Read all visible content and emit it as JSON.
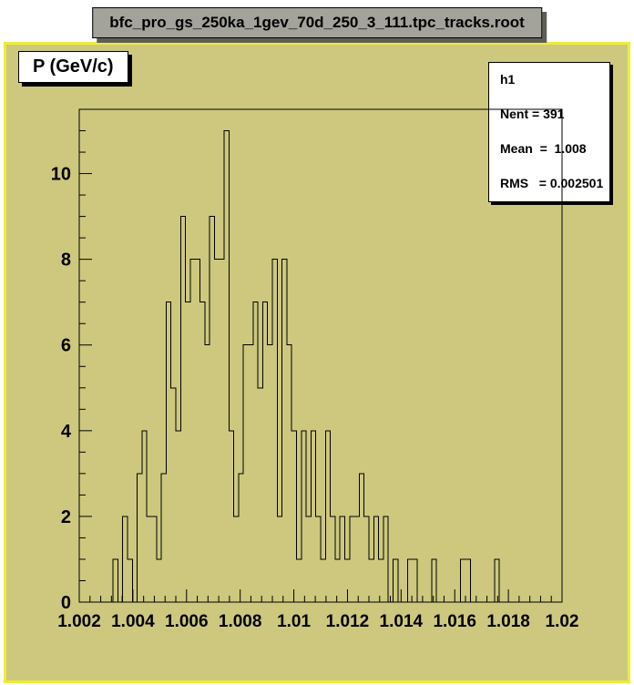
{
  "window": {
    "title": "bfc_pro_gs_250ka_1gev_70d_250_3_111.tpc_tracks.root"
  },
  "histogram_title": "P (GeV/c)",
  "stats_box": {
    "name": "h1",
    "entries_label": "Nent = 391",
    "mean_label": "Mean  =  1.008",
    "rms_label": "RMS   = 0.002501"
  },
  "colors": {
    "canvas_background": "#cdc87e",
    "canvas_border": "#eeec3a",
    "frame_line": "#000000",
    "histogram_line": "#000000",
    "stats_background": "#ffffff",
    "title_bar_background": "#a3a39b",
    "page_background": "#ffffff"
  },
  "chart_data": {
    "type": "bar",
    "subtype": "histogram-step-outline",
    "title": "P (GeV/c)",
    "xlabel": "",
    "ylabel": "",
    "grid": false,
    "legend": null,
    "x_start": 1.002,
    "x_end": 1.02,
    "n_bins": 100,
    "bin_width": 0.00018,
    "ylim": [
      0,
      11.5
    ],
    "x_major_ticks": [
      {
        "v": 1.002,
        "label": "1.002"
      },
      {
        "v": 1.004,
        "label": "1.004"
      },
      {
        "v": 1.006,
        "label": "1.006"
      },
      {
        "v": 1.008,
        "label": "1.008"
      },
      {
        "v": 1.01,
        "label": "1.01"
      },
      {
        "v": 1.012,
        "label": "1.012"
      },
      {
        "v": 1.014,
        "label": "1.014"
      },
      {
        "v": 1.016,
        "label": "1.016"
      },
      {
        "v": 1.018,
        "label": "1.018"
      },
      {
        "v": 1.02,
        "label": "1.02"
      }
    ],
    "x_minor_step": 0.0004,
    "y_major_ticks": [
      {
        "v": 0,
        "label": "0"
      },
      {
        "v": 2,
        "label": "2"
      },
      {
        "v": 4,
        "label": "4"
      },
      {
        "v": 6,
        "label": "6"
      },
      {
        "v": 8,
        "label": "8"
      },
      {
        "v": 10,
        "label": "10"
      }
    ],
    "y_minor_step": 0.5,
    "bins": [
      0,
      0,
      0,
      0,
      0,
      0,
      0,
      1,
      0,
      2,
      1,
      0,
      3,
      4,
      2,
      2,
      1,
      3,
      7,
      5,
      4,
      9,
      7,
      8,
      8,
      7,
      6,
      9,
      8,
      8,
      11,
      4,
      2,
      3,
      6,
      6,
      7,
      5,
      7,
      6,
      8,
      2,
      8,
      6,
      4,
      1,
      4,
      2,
      4,
      2,
      1,
      4,
      2,
      1,
      2,
      1,
      2,
      2,
      3,
      2,
      1,
      2,
      1,
      2,
      0,
      1,
      0,
      0,
      1,
      1,
      0,
      0,
      0,
      1,
      0,
      0,
      0,
      0,
      0,
      1,
      1,
      0,
      0,
      0,
      0,
      0,
      1,
      0,
      0,
      0,
      0,
      0,
      0,
      0,
      0,
      0,
      0,
      0,
      0,
      0
    ],
    "stats": {
      "name": "h1",
      "entries": 391,
      "mean": 1.008,
      "rms": 0.002501
    }
  }
}
